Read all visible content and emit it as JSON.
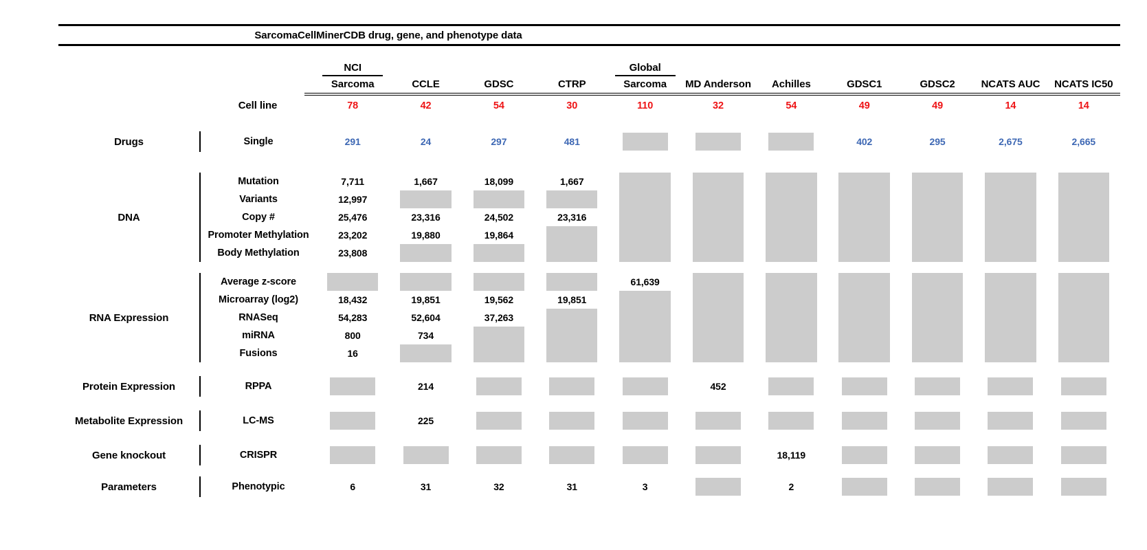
{
  "colors": {
    "count_red": "#ee1416",
    "drug_blue": "#3e68b4",
    "missing_gray": "#cccccc",
    "rule_black": "#000000"
  },
  "chart_data": {
    "type": "table",
    "title": "SarcomaCellMinerCDB drug, gene, and phenotype data",
    "missing_marker": "GRAY",
    "columns": [
      {
        "top": "NCI",
        "name": "Sarcoma"
      },
      {
        "name": "CCLE"
      },
      {
        "name": "GDSC"
      },
      {
        "name": "CTRP"
      },
      {
        "top": "Global",
        "name": "Sarcoma"
      },
      {
        "name": "MD Anderson"
      },
      {
        "name": "Achilles"
      },
      {
        "name": "GDSC1"
      },
      {
        "name": "GDSC2"
      },
      {
        "name": "NCATS AUC"
      },
      {
        "name": "NCATS IC50"
      }
    ],
    "cell_line_counts": {
      "label": "Cell line",
      "values": [
        "78",
        "42",
        "54",
        "30",
        "110",
        "32",
        "54",
        "49",
        "49",
        "14",
        "14"
      ]
    },
    "sections": [
      {
        "category": "Drugs",
        "value_color": "blue",
        "rows": [
          {
            "label": "Single",
            "cells": [
              "291",
              "24",
              "297",
              "481",
              "GRAY",
              "GRAY",
              "GRAY",
              "402",
              "295",
              "2,675",
              "2,665"
            ]
          }
        ]
      },
      {
        "category": "DNA",
        "rows": [
          {
            "label": "Mutation",
            "cells": [
              "7,711",
              "1,667",
              "18,099",
              "1,667",
              "GRAY",
              "GRAY",
              "GRAY",
              "GRAY",
              "GRAY",
              "GRAY",
              "GRAY"
            ]
          },
          {
            "label": "Variants",
            "cells": [
              "12,997",
              "GRAY",
              "GRAY",
              "GRAY",
              "GRAY",
              "GRAY",
              "GRAY",
              "GRAY",
              "GRAY",
              "GRAY",
              "GRAY"
            ]
          },
          {
            "label": "Copy #",
            "cells": [
              "25,476",
              "23,316",
              "24,502",
              "23,316",
              "GRAY",
              "GRAY",
              "GRAY",
              "GRAY",
              "GRAY",
              "GRAY",
              "GRAY"
            ]
          },
          {
            "label": "Promoter Methylation",
            "cells": [
              "23,202",
              "19,880",
              "19,864",
              "GRAY",
              "GRAY",
              "GRAY",
              "GRAY",
              "GRAY",
              "GRAY",
              "GRAY",
              "GRAY"
            ]
          },
          {
            "label": "Body Methylation",
            "cells": [
              "23,808",
              "GRAY",
              "GRAY",
              "GRAY",
              "GRAY",
              "GRAY",
              "GRAY",
              "GRAY",
              "GRAY",
              "GRAY",
              "GRAY"
            ]
          }
        ]
      },
      {
        "category": "RNA Expression",
        "rows": [
          {
            "label": "Average z-score",
            "cells": [
              "GRAY",
              "GRAY",
              "GRAY",
              "GRAY",
              "61,639",
              "GRAY",
              "GRAY",
              "GRAY",
              "GRAY",
              "GRAY",
              "GRAY"
            ]
          },
          {
            "label": "Microarray (log2)",
            "cells": [
              "18,432",
              "19,851",
              "19,562",
              "19,851",
              "GRAY",
              "GRAY",
              "GRAY",
              "GRAY",
              "GRAY",
              "GRAY",
              "GRAY"
            ]
          },
          {
            "label": "RNASeq",
            "cells": [
              "54,283",
              "52,604",
              "37,263",
              "GRAY",
              "GRAY",
              "GRAY",
              "GRAY",
              "GRAY",
              "GRAY",
              "GRAY",
              "GRAY"
            ]
          },
          {
            "label": "miRNA",
            "cells": [
              "800",
              "734",
              "GRAY",
              "GRAY",
              "GRAY",
              "GRAY",
              "GRAY",
              "GRAY",
              "GRAY",
              "GRAY",
              "GRAY"
            ]
          },
          {
            "label": "Fusions",
            "cells": [
              "16",
              "GRAY",
              "GRAY",
              "GRAY",
              "GRAY",
              "GRAY",
              "GRAY",
              "GRAY",
              "GRAY",
              "GRAY",
              "GRAY"
            ]
          }
        ]
      },
      {
        "category": "Protein Expression",
        "rows": [
          {
            "label": "RPPA",
            "cells": [
              "GRAY",
              "214",
              "GRAY",
              "GRAY",
              "GRAY",
              "452",
              "GRAY",
              "GRAY",
              "GRAY",
              "GRAY",
              "GRAY"
            ]
          }
        ]
      },
      {
        "category": "Metabolite Expression",
        "rows": [
          {
            "label": "LC-MS",
            "cells": [
              "GRAY",
              "225",
              "GRAY",
              "GRAY",
              "GRAY",
              "GRAY",
              "GRAY",
              "GRAY",
              "GRAY",
              "GRAY",
              "GRAY"
            ]
          }
        ]
      },
      {
        "category": "Gene knockout",
        "rows": [
          {
            "label": "CRISPR",
            "cells": [
              "GRAY",
              "GRAY",
              "GRAY",
              "GRAY",
              "GRAY",
              "GRAY",
              "18,119",
              "GRAY",
              "GRAY",
              "GRAY",
              "GRAY"
            ]
          }
        ]
      },
      {
        "category": "Parameters",
        "rows": [
          {
            "label": "Phenotypic",
            "cells": [
              "6",
              "31",
              "32",
              "31",
              "3",
              "GRAY",
              "2",
              "GRAY",
              "GRAY",
              "GRAY",
              "GRAY"
            ]
          }
        ]
      }
    ]
  }
}
